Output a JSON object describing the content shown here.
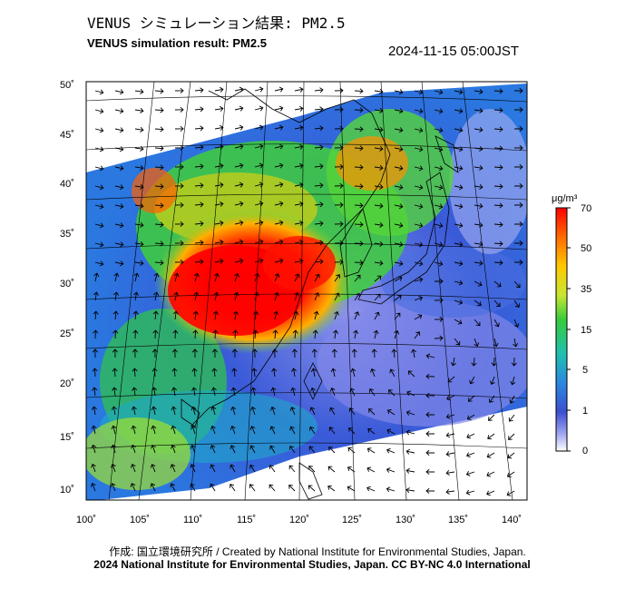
{
  "title_jp": "VENUS シミュレーション結果: PM2.5",
  "title_en": "VENUS simulation result: PM2.5",
  "timestamp": "2024-11-15 05:00JST",
  "credit_line1": "作成: 国立環境研究所 / Created by National Institute for Environmental Studies, Japan.",
  "credit_line2": "2024 National Institute for Environmental Studies, Japan. CC BY-NC 4.0 International",
  "map": {
    "lat_labels": [
      "50˚",
      "45˚",
      "40˚",
      "35˚",
      "30˚",
      "25˚",
      "20˚",
      "15˚",
      "10˚"
    ],
    "lon_labels": [
      "100˚",
      "105˚",
      "110˚",
      "115˚",
      "120˚",
      "125˚",
      "130˚",
      "135˚",
      "140˚"
    ]
  },
  "colorbar": {
    "unit": "μg/m³",
    "ticks": [
      "70",
      "50",
      "35",
      "15",
      "5",
      "1",
      "0"
    ],
    "colors": [
      "#ff0000",
      "#ff7a00",
      "#ffd400",
      "#9fe02e",
      "#22c74a",
      "#28b8c8",
      "#2a78e0",
      "#4a4fd8",
      "#9ba0f0",
      "#f4f4ff"
    ]
  }
}
